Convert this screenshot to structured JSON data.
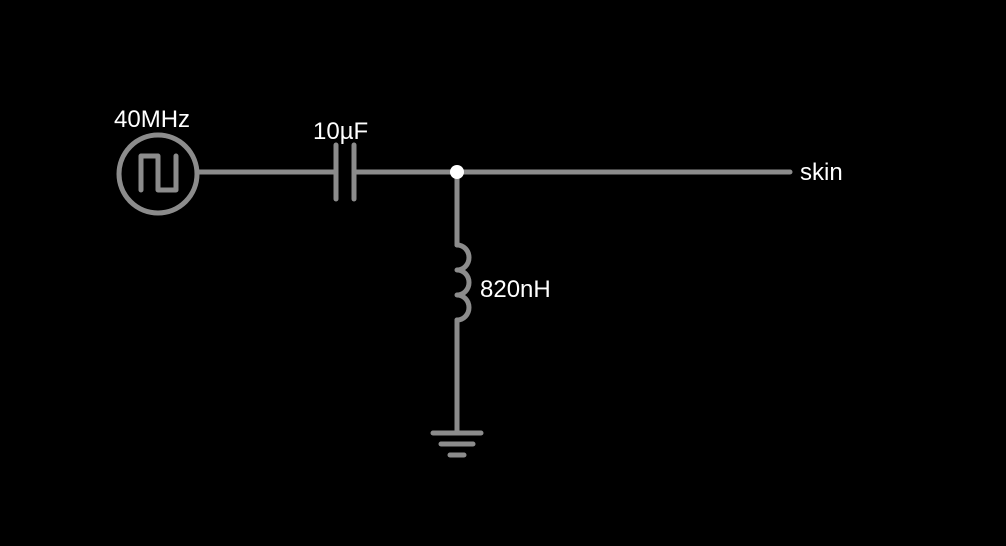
{
  "circuit": {
    "source_label": "40MHz",
    "capacitor_label": "10µF",
    "inductor_label": "820nH",
    "output_label": "skin"
  },
  "colors": {
    "background": "#000000",
    "wire": "#8c8c8c",
    "junction": "#ffffff",
    "text": "#ffffff"
  },
  "icons": {
    "source": "square-wave-source-icon",
    "capacitor": "capacitor-icon",
    "inductor": "inductor-icon",
    "ground": "ground-icon",
    "junction": "junction-dot"
  }
}
